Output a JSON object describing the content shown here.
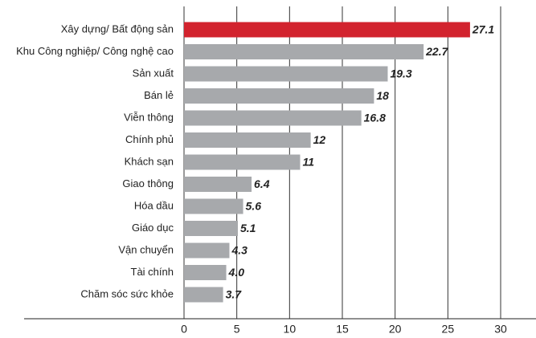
{
  "chart_data": {
    "type": "bar",
    "orientation": "horizontal",
    "categories": [
      "Xây dựng/ Bất động sản",
      "Khu Công nghiệp/ Công nghệ cao",
      "Sản xuất",
      "Bán lẻ",
      "Viễn thông",
      "Chính phủ",
      "Khách sạn",
      "Giao thông",
      "Hóa dầu",
      "Giáo dục",
      "Vận chuyển",
      "Tài chính",
      "Chăm sóc sức khỏe"
    ],
    "values": [
      27.1,
      22.7,
      19.3,
      18,
      16.8,
      12,
      11,
      6.4,
      5.6,
      5.1,
      4.3,
      4.0,
      3.7
    ],
    "value_labels": [
      "27.1",
      "22.7",
      "19.3",
      "18",
      "16.8",
      "12",
      "11",
      "6.4",
      "5.6",
      "5.1",
      "4.3",
      "4.0",
      "3.7"
    ],
    "colors": [
      "#d2232e",
      "#a7a9ac",
      "#a7a9ac",
      "#a7a9ac",
      "#a7a9ac",
      "#a7a9ac",
      "#a7a9ac",
      "#a7a9ac",
      "#a7a9ac",
      "#a7a9ac",
      "#a7a9ac",
      "#a7a9ac",
      "#a7a9ac"
    ],
    "xlim": [
      0,
      30
    ],
    "xticks": [
      0,
      5,
      10,
      15,
      20,
      25,
      30
    ],
    "grid": true
  }
}
